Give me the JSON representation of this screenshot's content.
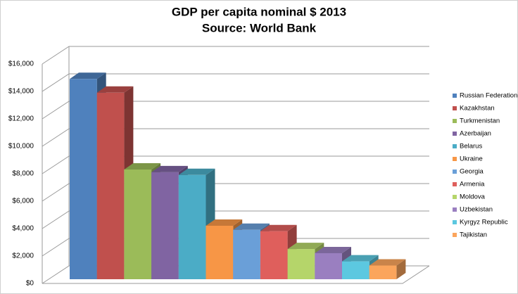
{
  "chart_data": {
    "type": "bar",
    "title": "GDP per capita nominal $ 2013",
    "subtitle": "Source: World Bank",
    "ylim": [
      0,
      16000
    ],
    "yticks": [
      {
        "value": 0,
        "label": "$0"
      },
      {
        "value": 2000,
        "label": "$2,000"
      },
      {
        "value": 4000,
        "label": "$4,000"
      },
      {
        "value": 6000,
        "label": "$6,000"
      },
      {
        "value": 8000,
        "label": "$8,000"
      },
      {
        "value": 10000,
        "label": "$10,000"
      },
      {
        "value": 12000,
        "label": "$12,000"
      },
      {
        "value": 14000,
        "label": "$14,000"
      },
      {
        "value": 16000,
        "label": "$16,000"
      }
    ],
    "grid": true,
    "legend": "right",
    "series": [
      {
        "name": "Russian Federation",
        "color": "#4f81bd",
        "values": [
          14600
        ]
      },
      {
        "name": "Kazakhstan",
        "color": "#c0504d",
        "values": [
          13600
        ]
      },
      {
        "name": "Turkmenistan",
        "color": "#9bbb59",
        "values": [
          8000
        ]
      },
      {
        "name": "Azerbaijan",
        "color": "#8064a2",
        "values": [
          7800
        ]
      },
      {
        "name": "Belarus",
        "color": "#4bacc6",
        "values": [
          7600
        ]
      },
      {
        "name": "Ukraine",
        "color": "#f79646",
        "values": [
          3900
        ]
      },
      {
        "name": "Georgia",
        "color": "#6a9fd8",
        "values": [
          3600
        ]
      },
      {
        "name": "Armenia",
        "color": "#df5f5c",
        "values": [
          3500
        ]
      },
      {
        "name": "Moldova",
        "color": "#b5d56a",
        "values": [
          2200
        ]
      },
      {
        "name": "Uzbekistan",
        "color": "#9a7fc0",
        "values": [
          1900
        ]
      },
      {
        "name": "Kyrgyz Republic",
        "color": "#5cc8e0",
        "values": [
          1300
        ]
      },
      {
        "name": "Tajikistan",
        "color": "#fba55c",
        "values": [
          1000
        ]
      }
    ]
  }
}
